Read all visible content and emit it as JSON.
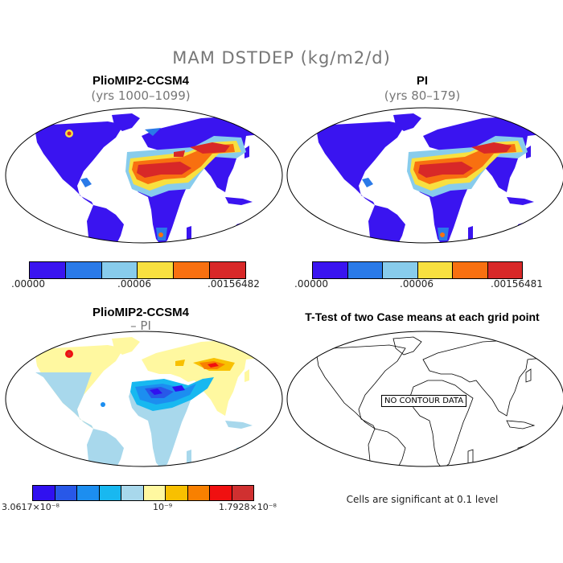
{
  "title": "MAM DSTDEP (kg/m2/d)",
  "panels": {
    "top_left": {
      "title": "PlioMIP2-CCSM4",
      "subtitle": "(yrs 1000–1099)",
      "colorbar": {
        "colors": [
          "#3a14f0",
          "#2a7ae8",
          "#88ccec",
          "#f8e040",
          "#f87010",
          "#d82828"
        ],
        "labels": [
          ".00000",
          ".00006",
          ".00156482"
        ]
      }
    },
    "top_right": {
      "title": "PI",
      "subtitle": "(yrs 80–179)",
      "colorbar": {
        "colors": [
          "#3a14f0",
          "#2a7ae8",
          "#88ccec",
          "#f8e040",
          "#f87010",
          "#d82828"
        ],
        "labels": [
          ".00000",
          ".00006",
          ".00156481"
        ]
      }
    },
    "bottom_left": {
      "title": "PlioMIP2-CCSM4",
      "subtitle": "– PI",
      "colorbar": {
        "colors": [
          "#3010f0",
          "#2858e8",
          "#1c8ef0",
          "#18b8f0",
          "#a8d8ec",
          "#fff8a0",
          "#f8c000",
          "#f88000",
          "#f01010",
          "#d03030"
        ],
        "labels": [
          "3.0617×10⁻⁸",
          "10⁻⁹",
          "1.7928×10⁻⁸"
        ]
      }
    },
    "bottom_right": {
      "title": "T-Test of two Case means at each grid point",
      "no_data": "NO CONTOUR DATA",
      "note": "Cells are significant at 0.1 level"
    }
  }
}
